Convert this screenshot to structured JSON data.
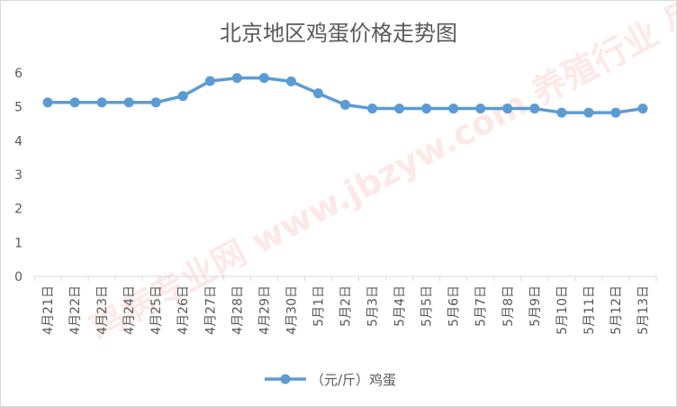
{
  "chart_data": {
    "type": "line",
    "title": "北京地区鸡蛋价格走势图",
    "categories": [
      "4月21日",
      "4月22日",
      "4月23日",
      "4月24日",
      "4月25日",
      "4月26日",
      "4月27日",
      "4月28日",
      "4月29日",
      "4月30日",
      "5月1日",
      "5月2日",
      "5月3日",
      "5月4日",
      "5月5日",
      "5月6日",
      "5月7日",
      "5月8日",
      "5月9日",
      "5月10日",
      "5月11日",
      "5月12日",
      "5月13日"
    ],
    "series": [
      {
        "name": "（元/斤）鸡蛋",
        "color": "#5b9bd5",
        "values": [
          5.13,
          5.13,
          5.13,
          5.13,
          5.13,
          5.32,
          5.76,
          5.85,
          5.85,
          5.75,
          5.4,
          5.06,
          4.95,
          4.95,
          4.95,
          4.95,
          4.95,
          4.95,
          4.95,
          4.83,
          4.83,
          4.83,
          4.95
        ]
      }
    ],
    "ylim": [
      0,
      6
    ],
    "yticks": [
      0,
      1,
      2,
      3,
      4,
      5,
      6
    ],
    "grid": false,
    "legend_position": "bottom"
  },
  "watermark": {
    "text": "鸡病专业网 www.jbzyw.com 养殖行业 尽在"
  }
}
